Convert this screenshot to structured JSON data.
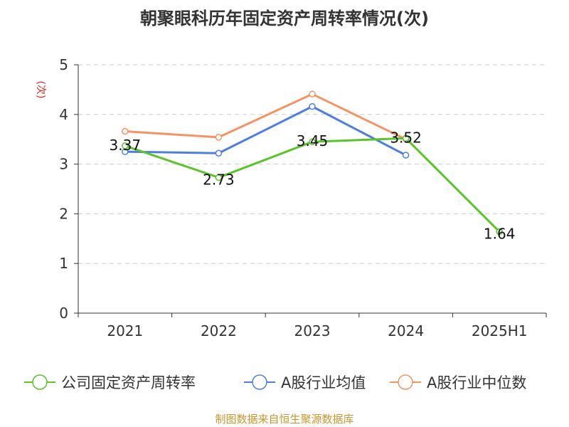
{
  "title": "朝聚眼科历年固定资产周转率情况(次)",
  "source": "制图数据来自恒生聚源数据库",
  "chart_data": {
    "type": "line",
    "title": "朝聚眼科历年固定资产周转率情况(次)",
    "ylabel": "(次)",
    "xlabel": "",
    "categories": [
      "2021",
      "2022",
      "2023",
      "2024",
      "2025H1"
    ],
    "ylim": [
      0,
      5
    ],
    "yticks": [
      "0",
      "1",
      "2",
      "3",
      "4",
      "5"
    ],
    "grid": true,
    "legend_position": "bottom",
    "series": [
      {
        "name": "公司固定资产周转率",
        "color": "#5bc42a",
        "values": [
          3.37,
          2.73,
          3.45,
          3.52,
          1.64
        ],
        "labels": [
          "3.37",
          "2.73",
          "3.45",
          "3.52",
          "1.64"
        ]
      },
      {
        "name": "A股行业均值",
        "color": "#4f7fdc",
        "values": [
          3.25,
          3.22,
          4.16,
          3.18,
          null
        ]
      },
      {
        "name": "A股行业中位数",
        "color": "#f59362",
        "values": [
          3.66,
          3.54,
          4.41,
          3.5,
          null
        ]
      }
    ]
  }
}
